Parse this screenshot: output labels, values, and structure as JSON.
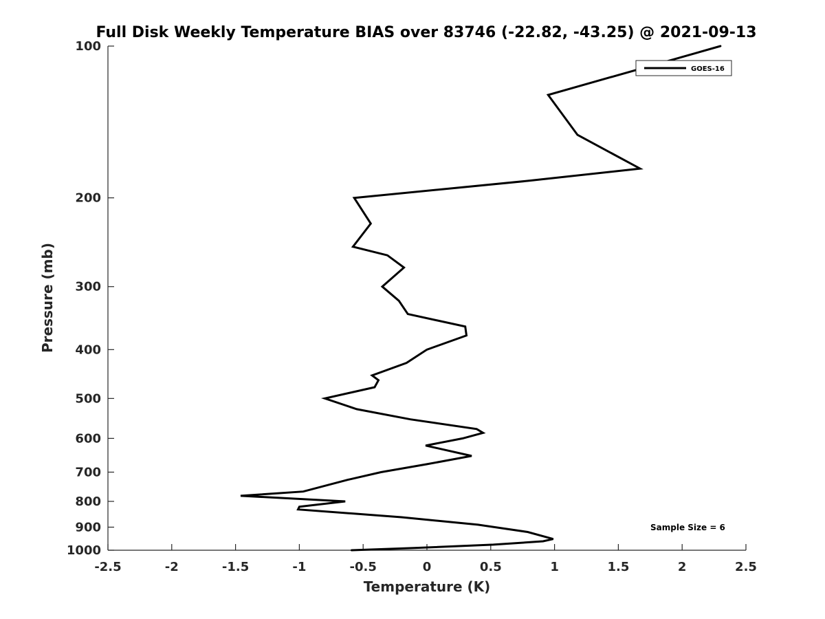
{
  "chart_data": {
    "type": "line",
    "title": "Full Disk Weekly Temperature BIAS over 83746 (-22.82, -43.25) @ 2021-09-13",
    "xlabel": "Temperature (K)",
    "ylabel": "Pressure (mb)",
    "xlim": [
      -2.5,
      2.5
    ],
    "ylim": [
      100,
      1000
    ],
    "y_scale": "log",
    "y_reversed": true,
    "grid": false,
    "legend_position": "top-right",
    "x_ticks": [
      {
        "value": -2.5,
        "label": "-2.5"
      },
      {
        "value": -2,
        "label": "-2"
      },
      {
        "value": -1.5,
        "label": "-1.5"
      },
      {
        "value": -1,
        "label": "-1"
      },
      {
        "value": -0.5,
        "label": "-0.5"
      },
      {
        "value": 0,
        "label": "0"
      },
      {
        "value": 0.5,
        "label": "0.5"
      },
      {
        "value": 1,
        "label": "1"
      },
      {
        "value": 1.5,
        "label": "1.5"
      },
      {
        "value": 2,
        "label": "2"
      },
      {
        "value": 2.5,
        "label": "2.5"
      }
    ],
    "y_ticks": [
      {
        "value": 100,
        "label": "100"
      },
      {
        "value": 200,
        "label": "200"
      },
      {
        "value": 300,
        "label": "300"
      },
      {
        "value": 400,
        "label": "400"
      },
      {
        "value": 500,
        "label": "500"
      },
      {
        "value": 600,
        "label": "600"
      },
      {
        "value": 700,
        "label": "700"
      },
      {
        "value": 800,
        "label": "800"
      },
      {
        "value": 900,
        "label": "900"
      },
      {
        "value": 1000,
        "label": "1000"
      }
    ],
    "annotation": "Sample Size = 6",
    "series": [
      {
        "name": "GOES-16",
        "color": "#000000",
        "points": [
          {
            "x": 2.3,
            "p": 100
          },
          {
            "x": 0.95,
            "p": 125
          },
          {
            "x": 1.18,
            "p": 150
          },
          {
            "x": 1.67,
            "p": 175
          },
          {
            "x": 0.8,
            "p": 185
          },
          {
            "x": -0.57,
            "p": 200
          },
          {
            "x": -0.44,
            "p": 225
          },
          {
            "x": -0.58,
            "p": 250
          },
          {
            "x": -0.31,
            "p": 260
          },
          {
            "x": -0.18,
            "p": 275
          },
          {
            "x": -0.35,
            "p": 300
          },
          {
            "x": -0.22,
            "p": 320
          },
          {
            "x": -0.15,
            "p": 340
          },
          {
            "x": 0.3,
            "p": 360
          },
          {
            "x": 0.31,
            "p": 375
          },
          {
            "x": 0.0,
            "p": 400
          },
          {
            "x": -0.16,
            "p": 425
          },
          {
            "x": -0.43,
            "p": 450
          },
          {
            "x": -0.38,
            "p": 460
          },
          {
            "x": -0.41,
            "p": 475
          },
          {
            "x": -0.8,
            "p": 500
          },
          {
            "x": -0.55,
            "p": 525
          },
          {
            "x": -0.13,
            "p": 550
          },
          {
            "x": 0.39,
            "p": 575
          },
          {
            "x": 0.44,
            "p": 585
          },
          {
            "x": 0.28,
            "p": 600
          },
          {
            "x": -0.01,
            "p": 620
          },
          {
            "x": 0.35,
            "p": 650
          },
          {
            "x": 0.0,
            "p": 675
          },
          {
            "x": -0.36,
            "p": 700
          },
          {
            "x": -0.62,
            "p": 725
          },
          {
            "x": -0.97,
            "p": 765
          },
          {
            "x": -1.46,
            "p": 780
          },
          {
            "x": -0.64,
            "p": 800
          },
          {
            "x": -1.0,
            "p": 820
          },
          {
            "x": -1.01,
            "p": 830
          },
          {
            "x": -0.2,
            "p": 860
          },
          {
            "x": 0.4,
            "p": 890
          },
          {
            "x": 0.79,
            "p": 920
          },
          {
            "x": 0.99,
            "p": 950
          },
          {
            "x": 0.91,
            "p": 960
          },
          {
            "x": 0.52,
            "p": 975
          },
          {
            "x": -0.1,
            "p": 990
          },
          {
            "x": -0.59,
            "p": 1000
          }
        ]
      }
    ]
  }
}
